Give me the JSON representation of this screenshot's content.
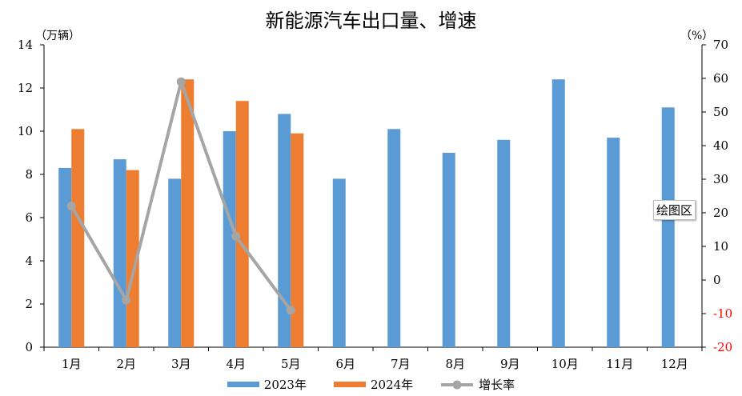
{
  "chart_data": {
    "type": "bar",
    "title": "新能源汽车出口量、增速",
    "y_left_unit": "（万辆）",
    "y_right_unit": "（%）",
    "categories": [
      "1月",
      "2月",
      "3月",
      "4月",
      "5月",
      "6月",
      "7月",
      "8月",
      "9月",
      "10月",
      "11月",
      "12月"
    ],
    "ylim_left": [
      0,
      14
    ],
    "yticks_left": [
      0,
      2,
      4,
      6,
      8,
      10,
      12,
      14
    ],
    "ylim_right": [
      -20,
      70
    ],
    "yticks_right": [
      -20,
      -10,
      0,
      10,
      20,
      30,
      40,
      50,
      60,
      70
    ],
    "series": [
      {
        "name": "2023年",
        "kind": "bar",
        "axis": "left",
        "color": "#5b9bd5",
        "values": [
          8.3,
          8.7,
          7.8,
          10.0,
          10.8,
          7.8,
          10.1,
          9.0,
          9.6,
          12.4,
          9.7,
          11.1
        ]
      },
      {
        "name": "2024年",
        "kind": "bar",
        "axis": "left",
        "color": "#ed7d31",
        "values": [
          10.1,
          8.2,
          12.4,
          11.4,
          9.9,
          null,
          null,
          null,
          null,
          null,
          null,
          null
        ]
      },
      {
        "name": "增长率",
        "kind": "line",
        "axis": "right",
        "color": "#a5a5a5",
        "values": [
          22,
          -6,
          59,
          13,
          -9,
          null,
          null,
          null,
          null,
          null,
          null,
          null
        ]
      }
    ],
    "negative_tick_color": "#ff0000",
    "grid": false,
    "legend_position": "bottom"
  },
  "tooltip": "绘图区"
}
